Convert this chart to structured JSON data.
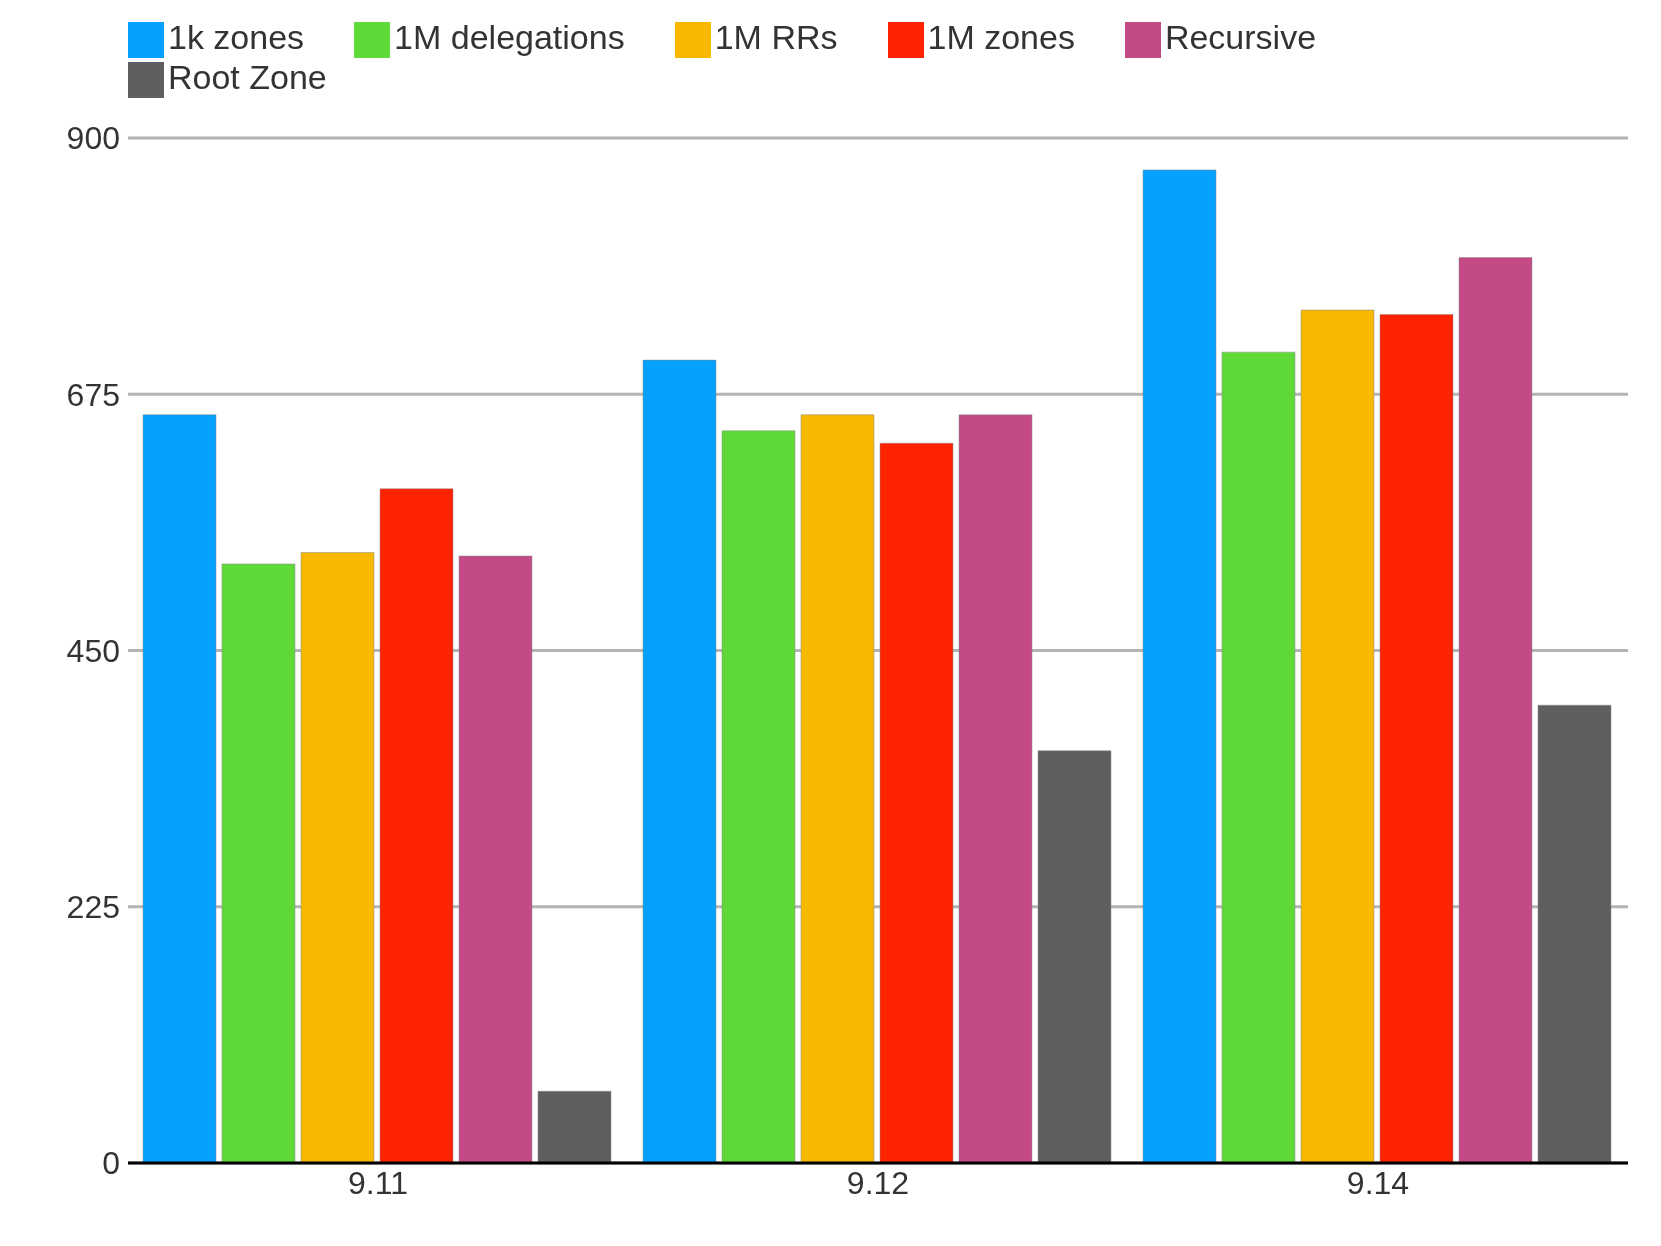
{
  "chart_data": {
    "type": "bar",
    "categories": [
      "9.11",
      "9.12",
      "9.14"
    ],
    "series": [
      {
        "name": "1k zones",
        "color": "#04a2fe",
        "values": [
          657,
          705,
          872
        ]
      },
      {
        "name": "1M delegations",
        "color": "#5fd937",
        "values": [
          526,
          643,
          712
        ]
      },
      {
        "name": "1M RRs",
        "color": "#f6b900",
        "values": [
          536,
          657,
          749
        ]
      },
      {
        "name": "1M zones",
        "color": "#fd2200",
        "values": [
          592,
          632,
          745
        ]
      },
      {
        "name": "Recursive",
        "color": "#c34a85",
        "values": [
          533,
          657,
          795
        ]
      },
      {
        "name": "Root Zone",
        "color": "#5f5f5f",
        "values": [
          63,
          362,
          402
        ]
      }
    ],
    "ylim": [
      0,
      900
    ],
    "yticks": [
      0,
      225,
      450,
      675,
      900
    ],
    "grid": "y",
    "legend": "top left"
  }
}
